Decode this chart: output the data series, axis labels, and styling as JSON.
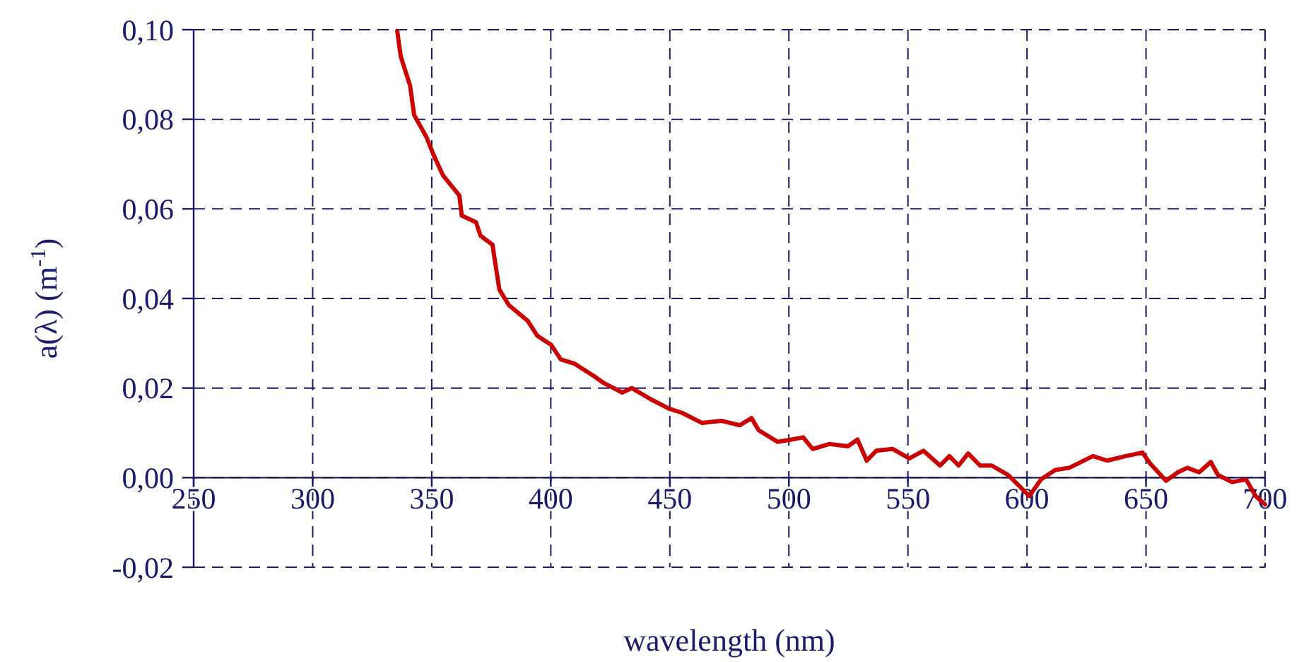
{
  "chart_data": {
    "type": "line",
    "xlabel": "wavelength (nm)",
    "ylabel": "a(λ) (m$^{-1}$)",
    "xlim": [
      250,
      700
    ],
    "xticks": [
      250,
      300,
      350,
      400,
      450,
      500,
      550,
      600,
      650,
      700
    ],
    "ylim": [
      -0.02,
      0.1
    ],
    "yticks": [
      {
        "value": -0.02,
        "label": "-0,02"
      },
      {
        "value": 0,
        "label": "0,00"
      },
      {
        "value": 0.02,
        "label": "0,02"
      },
      {
        "value": 0.04,
        "label": "0,04"
      },
      {
        "value": 0.06,
        "label": "0,06"
      },
      {
        "value": 0.08,
        "label": "0,08"
      },
      {
        "value": 0.1,
        "label": "0,10"
      }
    ],
    "grid": true,
    "line_style": "solid",
    "series": [
      {
        "color": "#cc0000",
        "x": [
          335.5,
          337,
          340.9,
          342.6,
          347.8,
          350.8,
          354.7,
          361.6,
          362.6,
          368.6,
          370.5,
          375.5,
          376.5,
          378.4,
          382.4,
          390.3,
          394.3,
          400.2,
          404.2,
          410.1,
          418,
          422,
          430,
          434,
          442,
          449.7,
          455,
          463.6,
          471.5,
          479.4,
          484.3,
          487.3,
          495.2,
          501.1,
          506,
          510,
          516.9,
          524.8,
          528.8,
          532.7,
          536.7,
          543.6,
          550.6,
          556.5,
          563.5,
          567.4,
          571.3,
          575.3,
          580.3,
          585.2,
          592.1,
          601,
          605.9,
          611.9,
          617.8,
          627.7,
          633.6,
          641.5,
          648.5,
          651.5,
          658.4,
          663.4,
          667.3,
          672.3,
          677.2,
          680.2,
          686.1,
          692,
          696,
          700
        ],
        "values": [
          0.0997,
          0.094,
          0.0875,
          0.081,
          0.076,
          0.072,
          0.0675,
          0.063,
          0.0585,
          0.057,
          0.054,
          0.052,
          0.0485,
          0.042,
          0.0385,
          0.035,
          0.0317,
          0.0296,
          0.0264,
          0.0254,
          0.0227,
          0.0212,
          0.019,
          0.02,
          0.0175,
          0.0154,
          0.0145,
          0.0122,
          0.0127,
          0.0117,
          0.0133,
          0.0106,
          0.008,
          0.0085,
          0.009,
          0.0064,
          0.0075,
          0.007,
          0.0085,
          0.0038,
          0.006,
          0.0064,
          0.0043,
          0.006,
          0.0027,
          0.0048,
          0.0027,
          0.0054,
          0.0027,
          0.0027,
          0.0006,
          -0.0041,
          -0.0004,
          0.0017,
          0.0022,
          0.0048,
          0.0038,
          0.0048,
          0.0056,
          0.0033,
          -0.0007,
          0.0012,
          0.0022,
          0.0012,
          0.0035,
          0.0006,
          -0.001,
          -0.0004,
          -0.0041,
          -0.006
        ]
      }
    ]
  }
}
